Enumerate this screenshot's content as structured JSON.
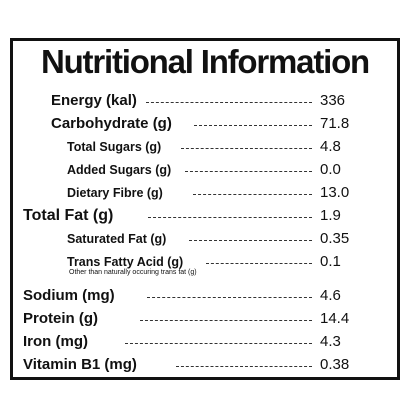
{
  "title": "Nutritional Information",
  "rows": [
    {
      "label": "Energy (kal)",
      "value": "336"
    },
    {
      "label": "Carbohydrate (g)",
      "value": "71.8"
    },
    {
      "label": "Total Sugars (g)",
      "value": "4.8"
    },
    {
      "label": "Added Sugars (g)",
      "value": "0.0"
    },
    {
      "label": "Dietary Fibre (g)",
      "value": "13.0"
    },
    {
      "label": "Total Fat (g)",
      "value": "1.9"
    },
    {
      "label": "Saturated Fat (g)",
      "value": "0.35"
    },
    {
      "label": "Trans Fatty Acid (g)",
      "value": "0.1"
    },
    {
      "label": "Sodium (mg)",
      "value": "4.6"
    },
    {
      "label": "Protein (g)",
      "value": "14.4"
    },
    {
      "label": "Iron (mg)",
      "value": "4.3"
    },
    {
      "label": "Vitamin B1 (mg)",
      "value": "0.38"
    }
  ],
  "trans_fat_note": "Other than naturally occuring trans fat (g)"
}
